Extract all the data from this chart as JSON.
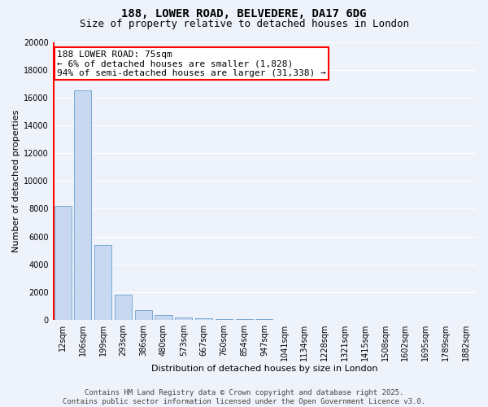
{
  "title1": "188, LOWER ROAD, BELVEDERE, DA17 6DG",
  "title2": "Size of property relative to detached houses in London",
  "xlabel": "Distribution of detached houses by size in London",
  "ylabel": "Number of detached properties",
  "bar_categories": [
    "12sqm",
    "106sqm",
    "199sqm",
    "293sqm",
    "386sqm",
    "480sqm",
    "573sqm",
    "667sqm",
    "760sqm",
    "854sqm",
    "947sqm",
    "1041sqm",
    "1134sqm",
    "1228sqm",
    "1321sqm",
    "1415sqm",
    "1508sqm",
    "1602sqm",
    "1695sqm",
    "1789sqm",
    "1882sqm"
  ],
  "bar_values": [
    8200,
    16500,
    5400,
    1800,
    700,
    350,
    200,
    120,
    80,
    50,
    30,
    20,
    15,
    10,
    8,
    6,
    5,
    4,
    3,
    3,
    2
  ],
  "bar_color": "#c8d8f0",
  "bar_edgecolor": "#7baad4",
  "vline_color": "red",
  "vline_x": -0.45,
  "ylim_max": 20000,
  "yticks": [
    0,
    2000,
    4000,
    6000,
    8000,
    10000,
    12000,
    14000,
    16000,
    18000,
    20000
  ],
  "annotation_text": "188 LOWER ROAD: 75sqm\n← 6% of detached houses are smaller (1,828)\n94% of semi-detached houses are larger (31,338) →",
  "annotation_box_facecolor": "white",
  "annotation_box_edgecolor": "red",
  "bg_color": "#eef2fa",
  "grid_color": "white",
  "title1_fontsize": 10,
  "title2_fontsize": 9,
  "axis_label_fontsize": 8,
  "tick_fontsize": 7,
  "annotation_fontsize": 8,
  "footer_fontsize": 6.5,
  "footer_text": "Contains HM Land Registry data © Crown copyright and database right 2025.\nContains public sector information licensed under the Open Government Licence v3.0."
}
